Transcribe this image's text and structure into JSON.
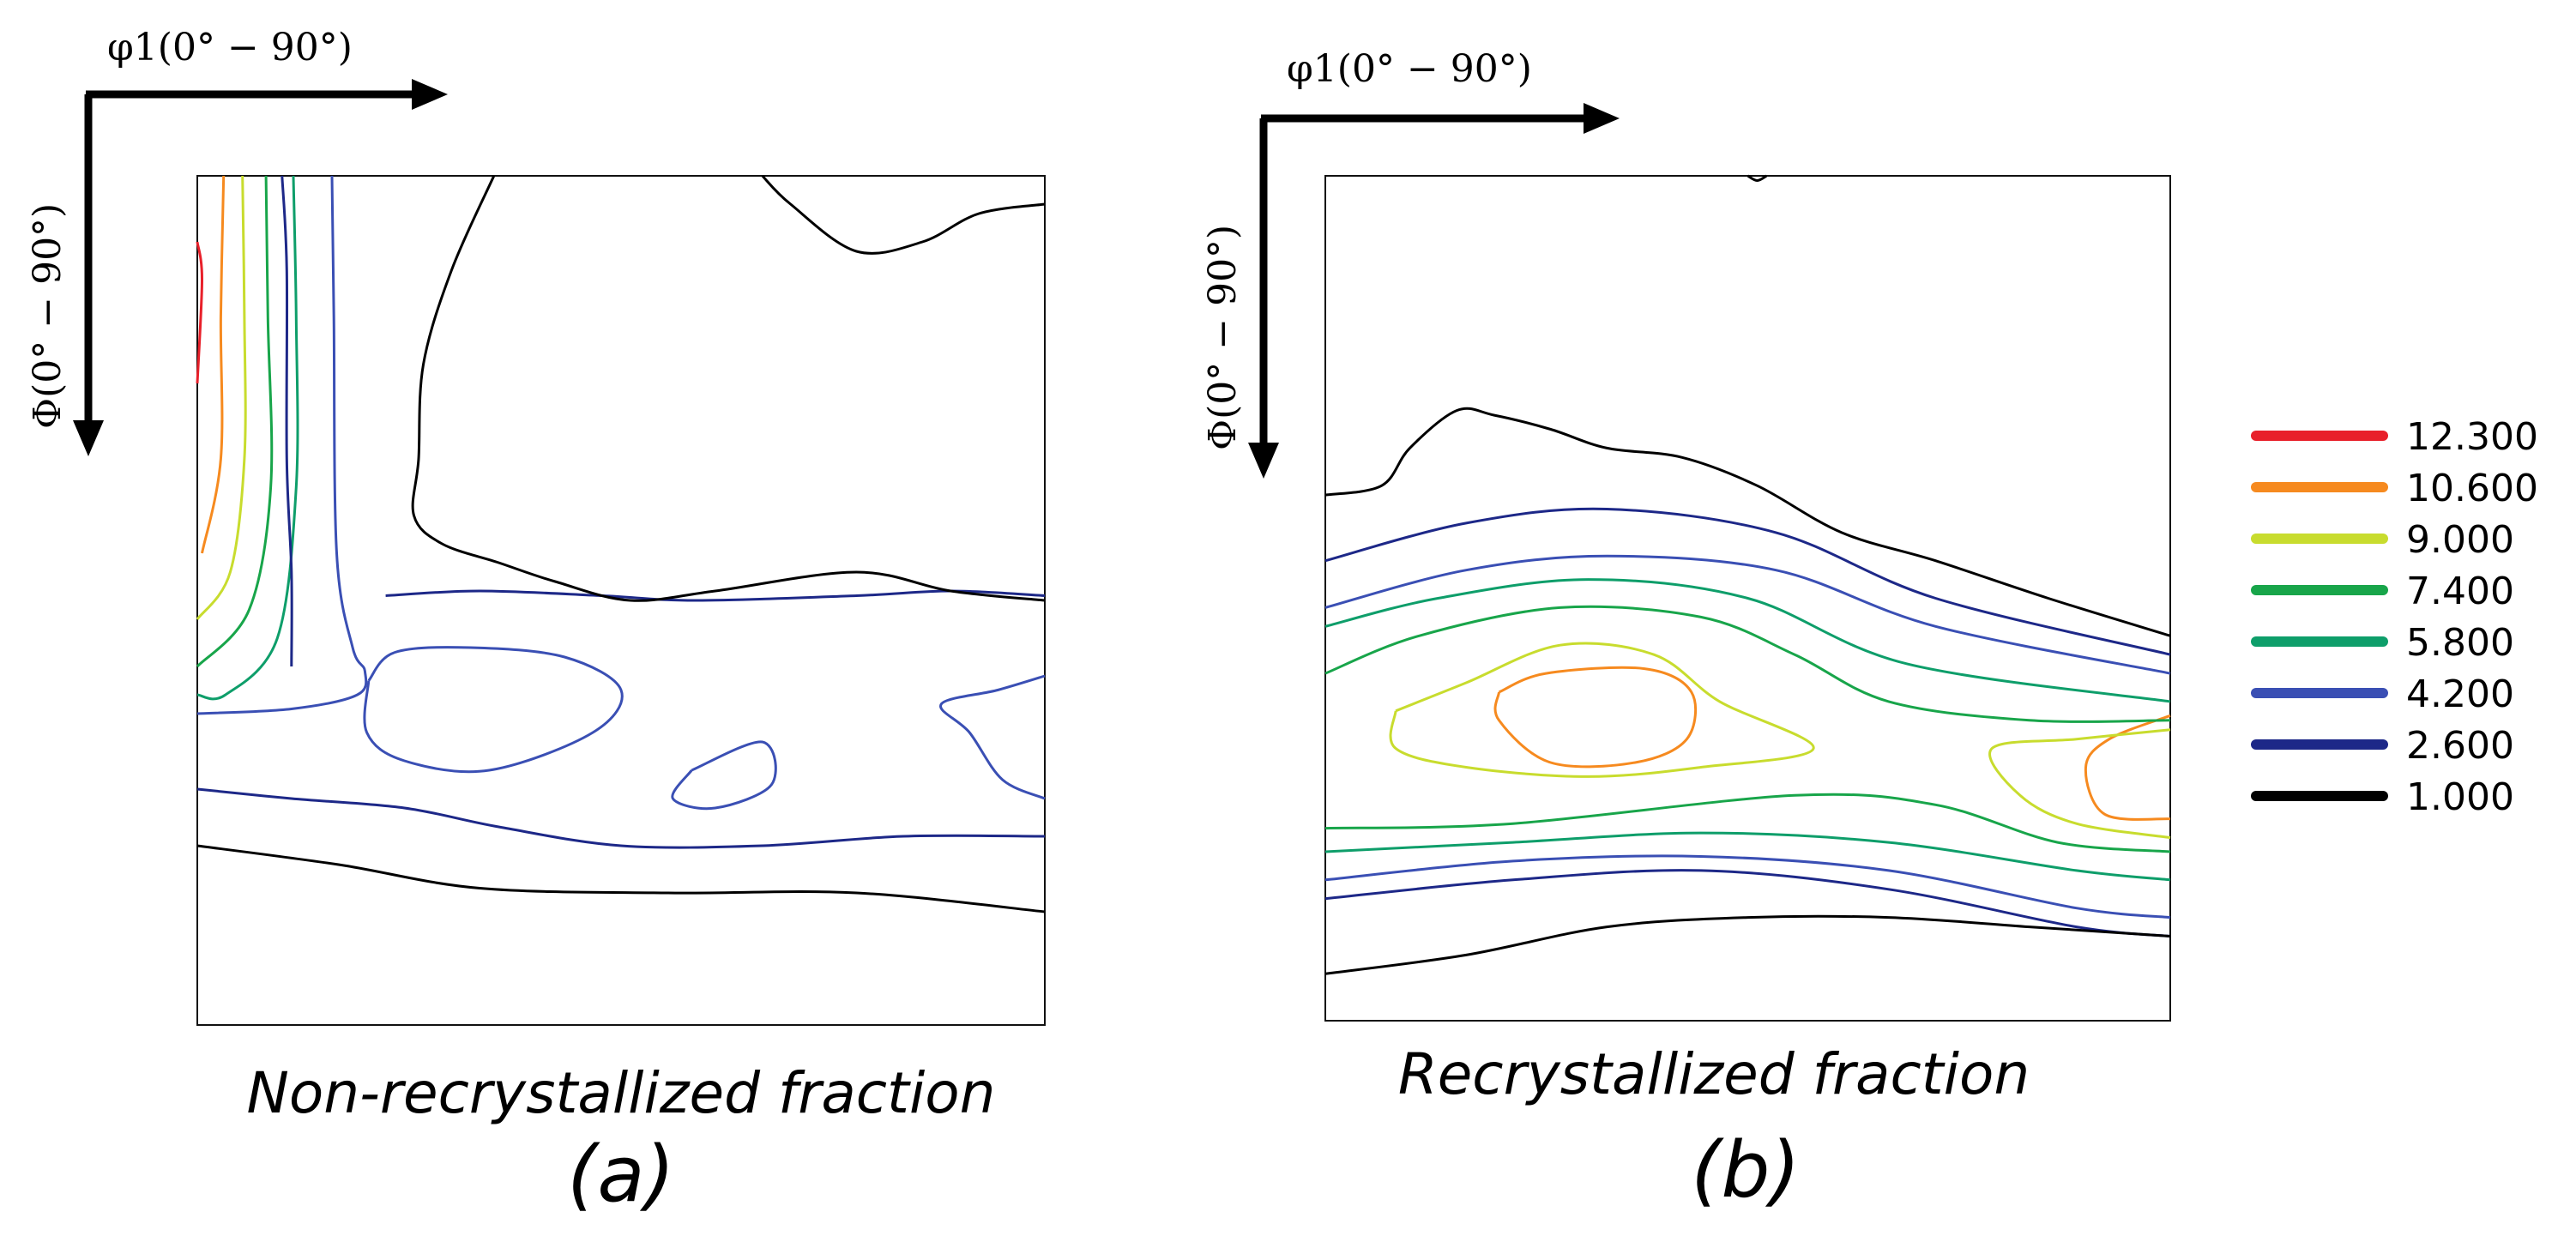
{
  "chart_data": {
    "type": "contour",
    "figure": "Orientation distribution function sections (contour plots)",
    "axes": {
      "horizontal": "φ1(0° − 90°)",
      "vertical": "Φ(0° − 90°)",
      "xlim": [
        0,
        90
      ],
      "ylim": [
        0,
        90
      ]
    },
    "legend": {
      "position": "right",
      "levels": [
        {
          "value": "12.300",
          "color": "#e8202a"
        },
        {
          "value": "10.600",
          "color": "#f68a1f"
        },
        {
          "value": "9.000",
          "color": "#c8dc2e"
        },
        {
          "value": "7.400",
          "color": "#18a54a"
        },
        {
          "value": "5.800",
          "color": "#0e9e6a"
        },
        {
          "value": "4.200",
          "color": "#3a4fb4"
        },
        {
          "value": "2.600",
          "color": "#1d2888"
        },
        {
          "value": "1.000",
          "color": "#000000"
        }
      ]
    },
    "panels": [
      {
        "id": "a",
        "caption": "Non-recrystallized fraction",
        "label": "(a)",
        "max_level": "12.300",
        "contours": [
          {
            "level": "12.300",
            "points": [
              [
                0,
                7
              ],
              [
                0.5,
                11
              ],
              [
                0,
                22
              ]
            ]
          },
          {
            "level": "10.600",
            "points": [
              [
                2.8,
                0
              ],
              [
                2.5,
                15
              ],
              [
                2.5,
                30
              ],
              [
                0.5,
                40
              ]
            ]
          },
          {
            "level": "9.000",
            "points": [
              [
                4.8,
                0
              ],
              [
                5,
                15
              ],
              [
                5,
                30
              ],
              [
                3.5,
                42
              ],
              [
                0,
                47
              ]
            ]
          },
          {
            "level": "7.400",
            "points": [
              [
                7.3,
                0
              ],
              [
                7.5,
                15
              ],
              [
                7.8,
                33
              ],
              [
                5.5,
                46
              ],
              [
                0,
                52
              ]
            ]
          },
          {
            "level": "5.800",
            "points": [
              [
                10.2,
                0
              ],
              [
                10.5,
                15
              ],
              [
                10.5,
                33
              ],
              [
                8.5,
                49
              ],
              [
                3,
                55
              ],
              [
                0,
                55
              ]
            ]
          },
          {
            "level": "4.200",
            "points": [
              [
                14.3,
                0
              ],
              [
                14.5,
                15
              ],
              [
                14.8,
                40
              ],
              [
                16.5,
                50
              ],
              [
                17.8,
                52.5
              ],
              [
                17,
                55
              ],
              [
                10,
                56.5
              ],
              [
                0,
                57
              ]
            ]
          },
          {
            "level": "4.200",
            "points": [
              [
                18.2,
                53.5
              ],
              [
                21,
                50.5
              ],
              [
                29,
                50
              ],
              [
                39,
                51
              ],
              [
                45,
                54.5
              ],
              [
                42,
                59
              ],
              [
                31,
                63
              ],
              [
                22,
                62
              ],
              [
                18,
                59
              ],
              [
                18.2,
                53.5
              ]
            ]
          },
          {
            "level": "4.200",
            "points": [
              [
                52.5,
                63
              ],
              [
                60,
                60
              ],
              [
                61,
                64.5
              ],
              [
                55,
                67
              ],
              [
                50.5,
                66
              ],
              [
                52.5,
                63
              ]
            ]
          },
          {
            "level": "4.200",
            "points": [
              [
                90,
                53
              ],
              [
                85,
                54.5
              ],
              [
                79,
                56
              ],
              [
                82,
                59
              ],
              [
                85.5,
                64
              ],
              [
                90,
                66
              ]
            ]
          },
          {
            "level": "2.600",
            "points": [
              [
                20,
                44.5
              ],
              [
                30,
                44
              ],
              [
                43,
                44.5
              ],
              [
                53,
                45
              ],
              [
                70,
                44.5
              ],
              [
                80,
                44
              ],
              [
                90,
                44.5
              ]
            ]
          },
          {
            "level": "2.600",
            "points": [
              [
                0,
                65
              ],
              [
                10,
                66
              ],
              [
                22,
                67
              ],
              [
                32,
                69
              ],
              [
                45,
                71
              ],
              [
                60,
                71
              ],
              [
                75,
                70
              ],
              [
                90,
                70
              ]
            ]
          },
          {
            "level": "2.600",
            "points": [
              [
                9,
                0
              ],
              [
                9.5,
                10
              ],
              [
                9.5,
                30
              ],
              [
                10,
                42
              ],
              [
                10,
                52
              ]
            ]
          },
          {
            "level": "1.000",
            "points": [
              [
                31.5,
                0
              ],
              [
                27,
                10
              ],
              [
                24,
                20
              ],
              [
                23.5,
                30
              ],
              [
                23,
                36
              ],
              [
                26,
                39
              ],
              [
                32,
                41
              ],
              [
                38,
                43
              ],
              [
                46,
                45
              ],
              [
                55,
                44
              ],
              [
                70,
                42
              ],
              [
                80,
                44
              ],
              [
                90,
                45
              ]
            ]
          },
          {
            "level": "1.000",
            "points": [
              [
                60,
                0
              ],
              [
                63,
                3
              ],
              [
                70,
                8
              ],
              [
                77,
                7
              ],
              [
                83,
                4
              ],
              [
                90,
                3
              ]
            ]
          },
          {
            "level": "1.000",
            "points": [
              [
                0,
                71
              ],
              [
                15,
                73
              ],
              [
                30,
                75.5
              ],
              [
                50,
                76
              ],
              [
                70,
                76
              ],
              [
                90,
                78
              ]
            ]
          }
        ]
      },
      {
        "id": "b",
        "caption": "Recrystallized fraction",
        "label": "(b)",
        "max_level": "10.600",
        "contours": [
          {
            "level": "10.600",
            "points": [
              [
                18.5,
                55
              ],
              [
                23.5,
                53
              ],
              [
                34,
                52.5
              ],
              [
                39,
                55
              ],
              [
                38.5,
                60
              ],
              [
                33,
                62.5
              ],
              [
                24,
                62.5
              ],
              [
                18.5,
                58
              ],
              [
                18.5,
                55
              ]
            ]
          },
          {
            "level": "10.600",
            "points": [
              [
                90,
                57.5
              ],
              [
                83.5,
                60
              ],
              [
                81,
                63
              ],
              [
                83,
                68
              ],
              [
                90,
                68.5
              ]
            ]
          },
          {
            "level": "9.000",
            "points": [
              [
                7.5,
                57
              ],
              [
                15,
                54
              ],
              [
                25,
                50
              ],
              [
                35,
                51
              ],
              [
                42,
                56
              ],
              [
                52,
                61
              ],
              [
                40,
                63
              ],
              [
                28,
                64
              ],
              [
                15,
                63
              ],
              [
                7.5,
                61
              ],
              [
                7.5,
                57
              ]
            ]
          },
          {
            "level": "9.000",
            "points": [
              [
                90,
                59
              ],
              [
                80,
                60
              ],
              [
                71,
                61
              ],
              [
                74,
                66
              ],
              [
                80,
                69
              ],
              [
                90,
                70.5
              ]
            ]
          },
          {
            "level": "7.400",
            "points": [
              [
                0,
                53
              ],
              [
                10,
                49
              ],
              [
                25,
                46
              ],
              [
                40,
                47
              ],
              [
                50,
                51
              ],
              [
                60,
                56
              ],
              [
                75,
                58
              ],
              [
                90,
                58
              ]
            ]
          },
          {
            "level": "7.400",
            "points": [
              [
                0,
                69.5
              ],
              [
                20,
                69
              ],
              [
                50,
                66
              ],
              [
                65,
                67
              ],
              [
                78,
                71
              ],
              [
                90,
                72
              ]
            ]
          },
          {
            "level": "5.800",
            "points": [
              [
                0,
                48
              ],
              [
                12,
                45
              ],
              [
                28,
                43
              ],
              [
                45,
                45
              ],
              [
                62,
                52
              ],
              [
                90,
                56
              ]
            ]
          },
          {
            "level": "5.800",
            "points": [
              [
                0,
                72
              ],
              [
                20,
                71
              ],
              [
                40,
                70
              ],
              [
                60,
                71
              ],
              [
                80,
                74
              ],
              [
                90,
                75
              ]
            ]
          },
          {
            "level": "4.200",
            "points": [
              [
                0,
                46
              ],
              [
                15,
                42
              ],
              [
                30,
                40.5
              ],
              [
                48,
                42
              ],
              [
                65,
                48
              ],
              [
                90,
                53
              ]
            ]
          },
          {
            "level": "4.200",
            "points": [
              [
                0,
                75
              ],
              [
                20,
                73
              ],
              [
                40,
                72.5
              ],
              [
                60,
                74
              ],
              [
                80,
                78
              ],
              [
                90,
                79
              ]
            ]
          },
          {
            "level": "2.600",
            "points": [
              [
                0,
                41
              ],
              [
                15,
                37
              ],
              [
                30,
                35.5
              ],
              [
                48,
                38
              ],
              [
                65,
                45
              ],
              [
                90,
                51
              ]
            ]
          },
          {
            "level": "2.600",
            "points": [
              [
                0,
                77
              ],
              [
                20,
                75
              ],
              [
                40,
                74
              ],
              [
                60,
                76
              ],
              [
                80,
                80
              ],
              [
                90,
                81
              ]
            ]
          },
          {
            "level": "1.000",
            "points": [
              [
                0,
                34
              ],
              [
                6,
                33
              ],
              [
                9,
                29
              ],
              [
                14,
                25
              ],
              [
                18,
                25.5
              ],
              [
                24,
                27
              ],
              [
                30,
                29
              ],
              [
                38,
                30
              ],
              [
                46,
                33
              ],
              [
                55,
                38
              ],
              [
                65,
                41
              ],
              [
                77,
                45
              ],
              [
                90,
                49
              ]
            ]
          },
          {
            "level": "1.000",
            "points": [
              [
                0,
                85
              ],
              [
                15,
                83
              ],
              [
                30,
                80
              ],
              [
                45,
                79
              ],
              [
                60,
                79
              ],
              [
                75,
                80
              ],
              [
                90,
                81
              ]
            ]
          },
          {
            "level": "1.000",
            "points": [
              [
                45,
                0
              ],
              [
                46,
                0.5
              ],
              [
                47,
                0
              ]
            ]
          }
        ]
      }
    ]
  }
}
